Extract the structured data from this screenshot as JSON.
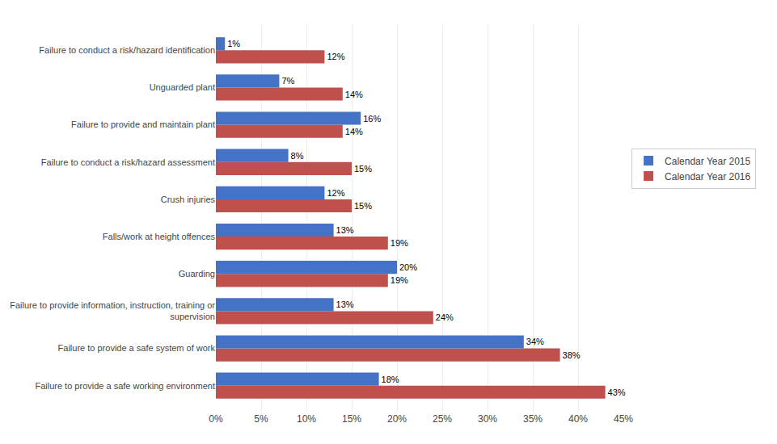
{
  "chart_data": {
    "type": "bar",
    "orientation": "horizontal",
    "categories": [
      "Failure to provide a safe working environment",
      "Failure to provide a safe system of work",
      "Failure to provide information, instruction, training or\n supervision",
      "Guarding",
      "Falls/work at height offences",
      "Crush injuries",
      "Failure to conduct a risk/hazard assessment",
      "Failure to provide and maintain plant",
      "Unguarded plant",
      "Failure to conduct a risk/hazard identification"
    ],
    "series": [
      {
        "name": "Calendar Year 2015",
        "color": "#4472C4",
        "values": [
          18,
          34,
          13,
          20,
          13,
          12,
          8,
          16,
          7,
          1
        ],
        "value_labels": [
          "18%",
          "34%",
          "13%",
          "20%",
          "13%",
          "12%",
          "8%",
          "16%",
          "7%",
          "1%"
        ]
      },
      {
        "name": "Calendar Year 2016",
        "color": "#C0504D",
        "values": [
          43,
          38,
          24,
          19,
          19,
          15,
          15,
          14,
          14,
          12
        ],
        "value_labels": [
          "43%",
          "38%",
          "24%",
          "19%",
          "19%",
          "15%",
          "15%",
          "14%",
          "14%",
          "12%"
        ]
      }
    ],
    "xlim": [
      0,
      45
    ],
    "xticks": [
      {
        "value": 0,
        "label": "0%"
      },
      {
        "value": 5,
        "label": "5%"
      },
      {
        "value": 10,
        "label": "10%"
      },
      {
        "value": 15,
        "label": "15%"
      },
      {
        "value": 20,
        "label": "20%"
      },
      {
        "value": 25,
        "label": "25%"
      },
      {
        "value": 30,
        "label": "30%"
      },
      {
        "value": 35,
        "label": "35%"
      },
      {
        "value": 40,
        "label": "40%"
      },
      {
        "value": 45,
        "label": "45%"
      }
    ],
    "grid": true,
    "data_labels": true,
    "legend": "right"
  }
}
